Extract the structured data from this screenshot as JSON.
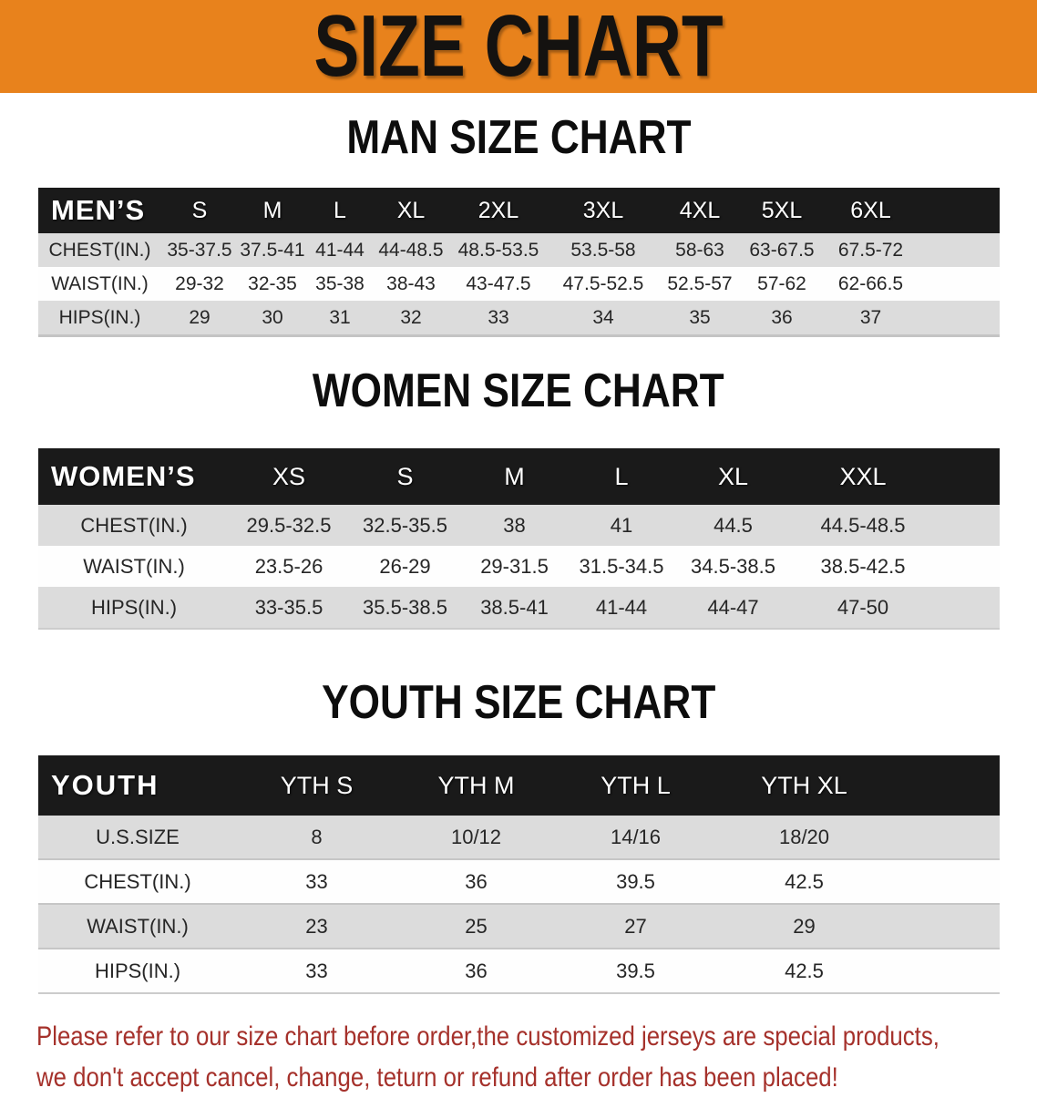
{
  "banner": {
    "title": "SIZE CHART"
  },
  "colors": {
    "banner_orange": "#E8821C",
    "header_black": "#1A1A1A",
    "row_gray": "#DCDCDC",
    "footer_red": "#A5312B"
  },
  "sections": [
    {
      "heading": "MAN SIZE CHART",
      "table": {
        "header_label": "MEN’S",
        "columns": [
          "S",
          "M",
          "L",
          "XL",
          "2XL",
          "3XL",
          "4XL",
          "5XL",
          "6XL"
        ],
        "rows": [
          {
            "label": "CHEST(IN.)",
            "values": [
              "35-37.5",
              "37.5-41",
              "41-44",
              "44-48.5",
              "48.5-53.5",
              "53.5-58",
              "58-63",
              "63-67.5",
              "67.5-72"
            ]
          },
          {
            "label": "WAIST(IN.)",
            "values": [
              "29-32",
              "32-35",
              "35-38",
              "38-43",
              "43-47.5",
              "47.5-52.5",
              "52.5-57",
              "57-62",
              "62-66.5"
            ]
          },
          {
            "label": "HIPS(IN.)",
            "values": [
              "29",
              "30",
              "31",
              "32",
              "33",
              "34",
              "35",
              "36",
              "37"
            ]
          }
        ]
      }
    },
    {
      "heading": "WOMEN SIZE CHART",
      "table": {
        "header_label": "WOMEN’S",
        "columns": [
          "XS",
          "S",
          "M",
          "L",
          "XL",
          "XXL"
        ],
        "rows": [
          {
            "label": "CHEST(IN.)",
            "values": [
              "29.5-32.5",
              "32.5-35.5",
              "38",
              "41",
              "44.5",
              "44.5-48.5"
            ]
          },
          {
            "label": "WAIST(IN.)",
            "values": [
              "23.5-26",
              "26-29",
              "29-31.5",
              "31.5-34.5",
              "34.5-38.5",
              "38.5-42.5"
            ]
          },
          {
            "label": "HIPS(IN.)",
            "values": [
              "33-35.5",
              "35.5-38.5",
              "38.5-41",
              "41-44",
              "44-47",
              "47-50"
            ]
          }
        ]
      }
    },
    {
      "heading": "YOUTH SIZE CHART",
      "table": {
        "header_label": "YOUTH",
        "columns": [
          "YTH S",
          "YTH M",
          "YTH L",
          "YTH XL"
        ],
        "rows": [
          {
            "label": "U.S.SIZE",
            "values": [
              "8",
              "10/12",
              "14/16",
              "18/20"
            ]
          },
          {
            "label": "CHEST(IN.)",
            "values": [
              "33",
              "36",
              "39.5",
              "42.5"
            ]
          },
          {
            "label": "WAIST(IN.)",
            "values": [
              "23",
              "25",
              "27",
              "29"
            ]
          },
          {
            "label": "HIPS(IN.)",
            "values": [
              "33",
              "36",
              "39.5",
              "42.5"
            ]
          }
        ]
      }
    }
  ],
  "footer": {
    "line1": "Please refer to our size chart before order,the customized jerseys are special products,",
    "line2": "we don't accept cancel, change, teturn or refund after order has been placed!"
  }
}
